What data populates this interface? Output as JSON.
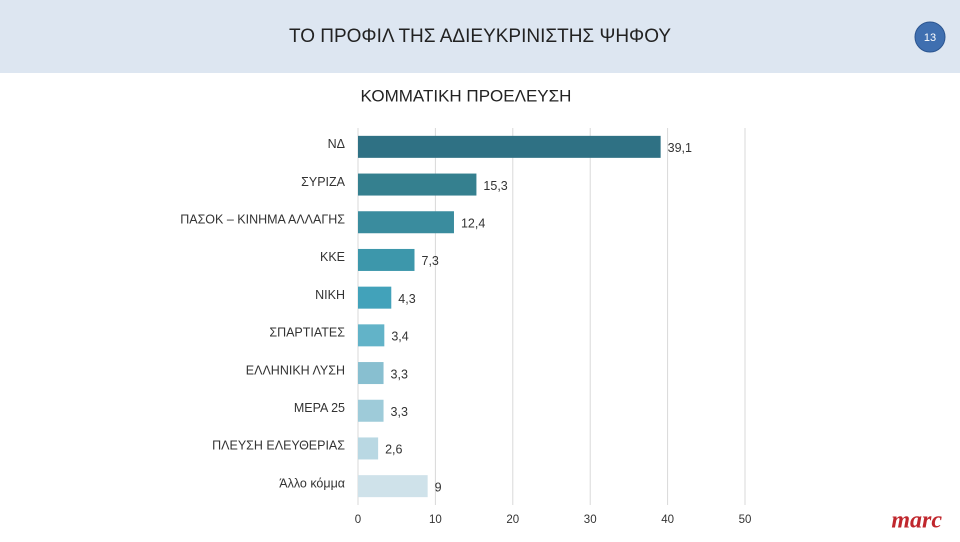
{
  "header": {
    "title": "ΤΟ ΠΡΟΦΙΛ ΤΗΣ ΑΔΙΕΥΚΡΙΝΙΣΤΗΣ ΨΗΦΟΥ",
    "page_number": "13"
  },
  "logo": "marc",
  "chart_data": {
    "type": "bar",
    "orientation": "horizontal",
    "title": "ΚΟΜΜΑΤΙΚΗ ΠΡΟΕΛΕΥΣΗ",
    "categories": [
      "ΝΔ",
      "ΣΥΡΙΖΑ",
      "ΠΑΣΟΚ – ΚΙΝΗΜΑ ΑΛΛΑΓΗΣ",
      "ΚΚΕ",
      "ΝΙΚΗ",
      "ΣΠΑΡΤΙΑΤΕΣ",
      "ΕΛΛΗΝΙΚΗ ΛΥΣΗ",
      "ΜΕΡΑ 25",
      "ΠΛΕΥΣΗ ΕΛΕΥΘΕΡΙΑΣ",
      "Άλλο κόμμα"
    ],
    "values": [
      39.1,
      15.3,
      12.4,
      7.3,
      4.3,
      3.4,
      3.3,
      3.3,
      2.6,
      9
    ],
    "value_labels": [
      "39,1",
      "15,3",
      "12,4",
      "7,3",
      "4,3",
      "3,4",
      "3,3",
      "3,3",
      "2,6",
      "9"
    ],
    "colors": [
      "#2f7184",
      "#35808f",
      "#3a8c9e",
      "#3d97ab",
      "#42a2ba",
      "#62b3c8",
      "#88bfd0",
      "#9ecbd9",
      "#b9d8e3",
      "#cfe2ea"
    ],
    "xlim": [
      0,
      50
    ],
    "xticks": [
      0,
      10,
      20,
      30,
      40,
      50
    ],
    "grid": true
  }
}
